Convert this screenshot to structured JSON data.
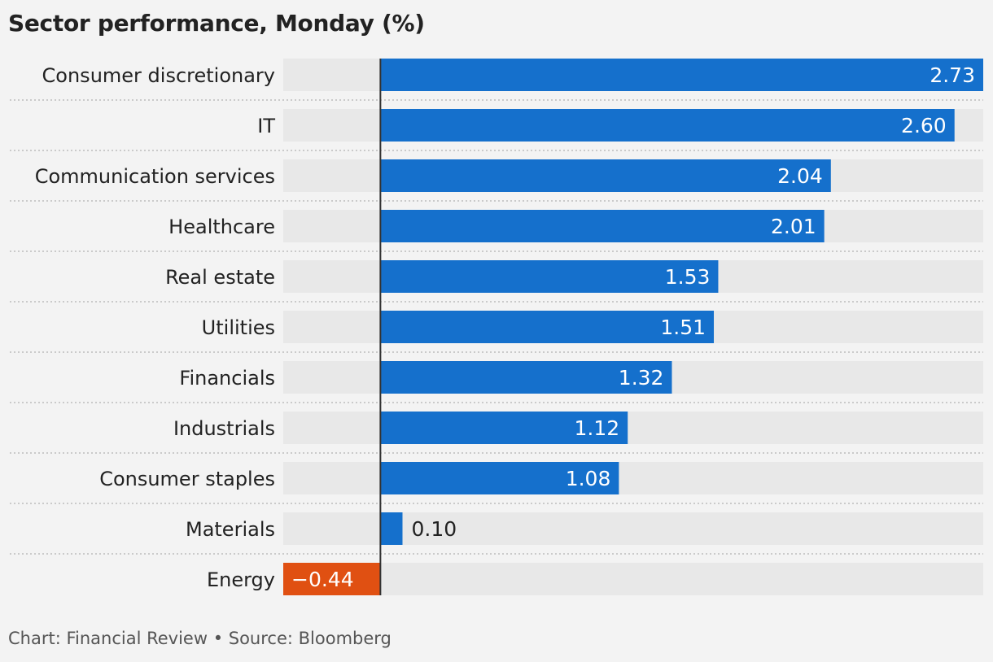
{
  "title": "Sector performance, Monday (%)",
  "footer": "Chart: Financial Review • Source: Bloomberg",
  "colors": {
    "positive": "#1570cc",
    "negative": "#e05012",
    "track": "#e8e8e8",
    "background": "#f3f3f3"
  },
  "chart_data": {
    "type": "bar",
    "orientation": "horizontal",
    "categories": [
      "Consumer discretionary",
      "IT",
      "Communication services",
      "Healthcare",
      "Real estate",
      "Utilities",
      "Financials",
      "Industrials",
      "Consumer staples",
      "Materials",
      "Energy"
    ],
    "values": [
      2.73,
      2.6,
      2.04,
      2.01,
      1.53,
      1.51,
      1.32,
      1.12,
      1.08,
      0.1,
      -0.44
    ],
    "value_labels": [
      "2.73",
      "2.60",
      "2.04",
      "2.01",
      "1.53",
      "1.51",
      "1.32",
      "1.12",
      "1.08",
      "0.10",
      "−0.44"
    ],
    "xlim": [
      -0.44,
      2.73
    ],
    "grid": false,
    "legend": "none"
  }
}
